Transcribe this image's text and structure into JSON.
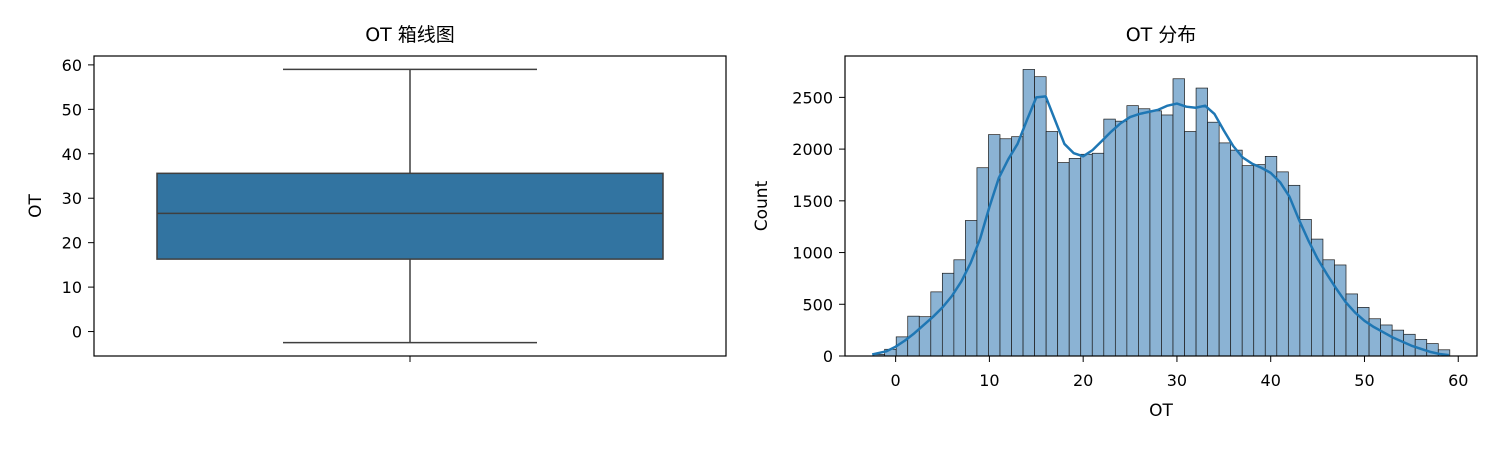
{
  "colors": {
    "box_fill": "#3274a1",
    "box_edge": "#3f3f3f",
    "hist_fill": "#8bb3d4",
    "hist_edge": "#1a1a1a",
    "kde_line": "#1f77b4",
    "axis": "#000000"
  },
  "chart_data": [
    {
      "type": "box",
      "title": "OT 箱线图",
      "xlabel": "",
      "ylabel": "OT",
      "ylim": [
        -5.5,
        62
      ],
      "yticks": [
        0,
        10,
        20,
        30,
        40,
        50,
        60
      ],
      "box": {
        "whisker_low": -2.5,
        "q1": 16.3,
        "median": 26.6,
        "q3": 35.6,
        "whisker_high": 59.0
      }
    },
    {
      "type": "histogram",
      "title": "OT 分布",
      "xlabel": "OT",
      "ylabel": "Count",
      "xlim": [
        -5.4,
        62.0
      ],
      "ylim": [
        0,
        2900
      ],
      "xticks": [
        0,
        10,
        20,
        30,
        40,
        50,
        60
      ],
      "yticks": [
        0,
        500,
        1000,
        1500,
        2000,
        2500
      ],
      "bin_start": -2.4,
      "bin_width": 1.23,
      "counts": [
        15,
        65,
        185,
        385,
        380,
        620,
        800,
        930,
        1310,
        1820,
        2140,
        2100,
        2120,
        2770,
        2700,
        2170,
        1870,
        1910,
        1950,
        1960,
        2290,
        2270,
        2420,
        2390,
        2370,
        2330,
        2680,
        2170,
        2590,
        2260,
        2060,
        1990,
        1840,
        1850,
        1930,
        1780,
        1650,
        1320,
        1130,
        930,
        880,
        600,
        470,
        360,
        300,
        250,
        210,
        160,
        120,
        60
      ],
      "kde": {
        "x": [
          -2.5,
          -1,
          0,
          1,
          2,
          3,
          4,
          5,
          6,
          7,
          8,
          9,
          10,
          11,
          12,
          13,
          14,
          15,
          16,
          17,
          18,
          19,
          20,
          21,
          22,
          23,
          24,
          25,
          26,
          27,
          28,
          29,
          30,
          31,
          32,
          33,
          34,
          35,
          36,
          37,
          38,
          39,
          40,
          41,
          42,
          43,
          44,
          45,
          46,
          47,
          48,
          49,
          50,
          51,
          52,
          53,
          54,
          55,
          56,
          57,
          58,
          59
        ],
        "y": [
          15,
          45,
          90,
          150,
          220,
          300,
          380,
          470,
          580,
          720,
          900,
          1130,
          1440,
          1720,
          1900,
          2050,
          2280,
          2500,
          2510,
          2280,
          2050,
          1960,
          1930,
          1990,
          2080,
          2170,
          2250,
          2310,
          2340,
          2360,
          2380,
          2420,
          2440,
          2410,
          2400,
          2420,
          2340,
          2180,
          2030,
          1920,
          1860,
          1820,
          1770,
          1680,
          1540,
          1320,
          1120,
          940,
          790,
          650,
          520,
          420,
          340,
          280,
          230,
          180,
          140,
          100,
          70,
          40,
          20,
          8
        ]
      }
    }
  ]
}
